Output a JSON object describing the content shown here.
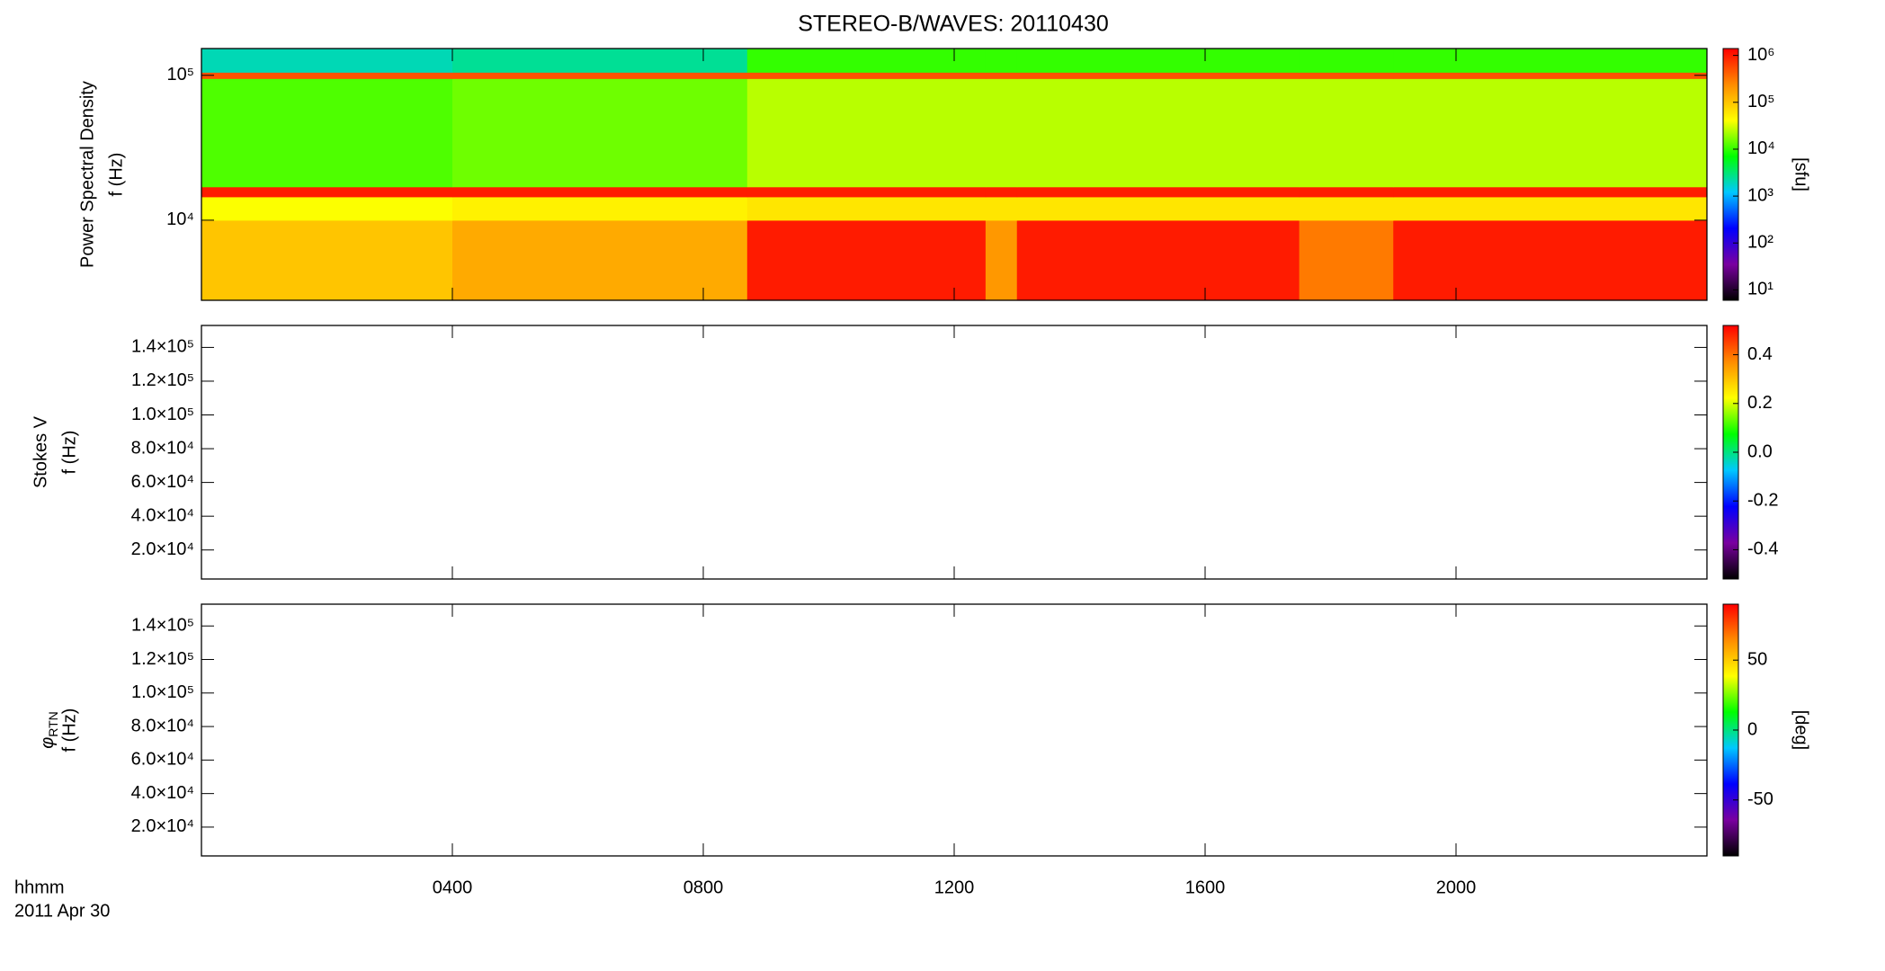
{
  "chart_data": [
    {
      "type": "heatmap",
      "title": "STEREO-B/WAVES: 20110430",
      "ylabel": [
        "Power Spectral Density",
        "f (Hz)"
      ],
      "ylog": true,
      "ylim": [
        2800,
        153000
      ],
      "yticks": [
        {
          "value": 10000,
          "label": "10⁴"
        },
        {
          "value": 100000,
          "label": "10⁵"
        }
      ],
      "x": [
        0,
        4,
        8.7,
        12.5,
        13,
        17.5,
        19,
        24
      ],
      "y": [
        2800,
        10000,
        14500,
        17000,
        95000,
        105000,
        153000
      ],
      "z": [
        [
          100000,
          150000,
          1000000,
          200000,
          1000000,
          300000,
          1000000
        ],
        [
          40000,
          50000,
          60000,
          60000,
          60000,
          60000,
          60000
        ],
        [
          1000000,
          1000000,
          1000000,
          1000000,
          1000000,
          1000000,
          1000000
        ],
        [
          12000,
          15000,
          25000,
          25000,
          25000,
          25000,
          25000
        ],
        [
          500000,
          500000,
          500000,
          500000,
          500000,
          500000,
          500000
        ],
        [
          2000,
          2500,
          10000,
          10000,
          10000,
          10000,
          10000
        ]
      ],
      "colormap": [
        "#000000",
        "#7a00a0",
        "#0000ff",
        "#00c8ff",
        "#00ff00",
        "#ffff00",
        "#ff8c00",
        "#ff0000"
      ],
      "clog": true,
      "clim": [
        6,
        1400000
      ],
      "cticks": [
        {
          "value": 10,
          "label": "10¹"
        },
        {
          "value": 100,
          "label": "10²"
        },
        {
          "value": 1000,
          "label": "10³"
        },
        {
          "value": 10000,
          "label": "10⁴"
        },
        {
          "value": 100000,
          "label": "10⁵"
        },
        {
          "value": 1000000,
          "label": "10⁶"
        }
      ],
      "clabel": "[sfu]"
    },
    {
      "type": "heatmap",
      "ylabel": [
        "Stokes V",
        "f (Hz)"
      ],
      "ylog": false,
      "ylim": [
        2800,
        153000
      ],
      "yticks": [
        {
          "value": 20000,
          "label": "2.0×10⁴"
        },
        {
          "value": 40000,
          "label": "4.0×10⁴"
        },
        {
          "value": 60000,
          "label": "6.0×10⁴"
        },
        {
          "value": 80000,
          "label": "8.0×10⁴"
        },
        {
          "value": 100000,
          "label": "1.0×10⁵"
        },
        {
          "value": 120000,
          "label": "1.2×10⁵"
        },
        {
          "value": 140000,
          "label": "1.4×10⁵"
        }
      ],
      "clog": false,
      "clim": [
        -0.52,
        0.52
      ],
      "cticks": [
        {
          "value": -0.4,
          "label": "-0.4"
        },
        {
          "value": -0.2,
          "label": "-0.2"
        },
        {
          "value": 0,
          "label": "0.0"
        },
        {
          "value": 0.2,
          "label": "0.2"
        },
        {
          "value": 0.4,
          "label": "0.4"
        }
      ]
    },
    {
      "type": "heatmap",
      "ylabel_symbol": "φ",
      "ylabel_subscript": "RTN",
      "ylabel": [
        "f (Hz)"
      ],
      "ylog": false,
      "ylim": [
        2800,
        153000
      ],
      "yticks": [
        {
          "value": 20000,
          "label": "2.0×10⁴"
        },
        {
          "value": 40000,
          "label": "4.0×10⁴"
        },
        {
          "value": 60000,
          "label": "6.0×10⁴"
        },
        {
          "value": 80000,
          "label": "8.0×10⁴"
        },
        {
          "value": 100000,
          "label": "1.0×10⁵"
        },
        {
          "value": 120000,
          "label": "1.2×10⁵"
        },
        {
          "value": 140000,
          "label": "1.4×10⁵"
        }
      ],
      "clog": false,
      "clim": [
        -90,
        90
      ],
      "cticks": [
        -50,
        0,
        50
      ],
      "clabel": "[deg]",
      "xlim": [
        0,
        24
      ],
      "xticks": [
        {
          "value": 4,
          "label": "0400"
        },
        {
          "value": 8,
          "label": "0800"
        },
        {
          "value": 12,
          "label": "1200"
        },
        {
          "value": 16,
          "label": "1600"
        },
        {
          "value": 20,
          "label": "2000"
        }
      ],
      "xlabel": "hhmm",
      "date": "2011 Apr 30"
    }
  ]
}
